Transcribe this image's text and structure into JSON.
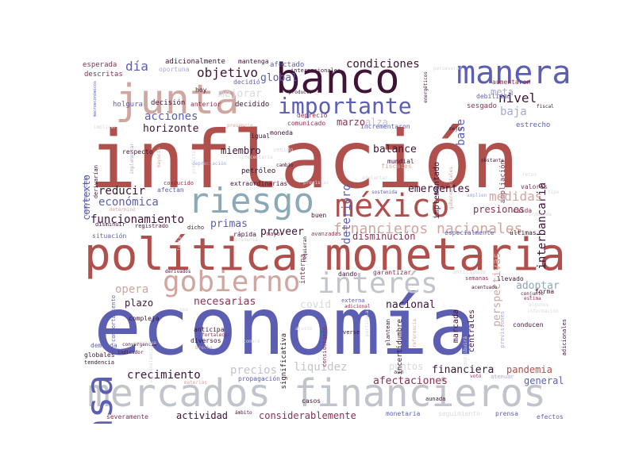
{
  "palette": {
    "red": "#b0504c",
    "indigo": "#5c5eb2",
    "steel": "#8aa9b9",
    "silver": "#c2c4cb",
    "rose": "#cfa6a0",
    "plum": "#3f1436",
    "wine": "#8e2f4f",
    "mauve": "#a07090",
    "light": "#d7d9de",
    "lav": "#a7a8d2"
  },
  "words": [
    {
      "t": "inflación",
      "c": "red"
    },
    {
      "t": "economía",
      "c": "indigo"
    },
    {
      "t": "política monetaria",
      "c": "red"
    },
    {
      "t": "mercados financieros",
      "c": "silver"
    },
    {
      "t": "banco",
      "c": "plum"
    },
    {
      "t": "junta",
      "c": "rose"
    },
    {
      "t": "manera",
      "c": "indigo"
    },
    {
      "t": "riesgo",
      "c": "steel"
    },
    {
      "t": "méxico",
      "c": "red"
    },
    {
      "t": "tasa",
      "c": "indigo"
    },
    {
      "t": "gobierno",
      "c": "rose"
    },
    {
      "t": "interés",
      "c": "silver"
    },
    {
      "t": "importante",
      "c": "indigo"
    },
    {
      "t": "condiciones",
      "c": "plum"
    },
    {
      "t": "financieros nacionales",
      "c": "rose"
    },
    {
      "t": "objetivo",
      "c": "plum"
    },
    {
      "t": "global",
      "c": "indigo"
    },
    {
      "t": "día",
      "c": "indigo"
    },
    {
      "t": "mejorar",
      "c": "light"
    },
    {
      "t": "acciones",
      "c": "indigo"
    },
    {
      "t": "contexto",
      "c": "indigo"
    },
    {
      "t": "horizonte",
      "c": "plum"
    },
    {
      "t": "marzo",
      "c": "wine"
    },
    {
      "t": "alza",
      "c": "silver"
    },
    {
      "t": "nivel",
      "c": "plum"
    },
    {
      "t": "base",
      "c": "indigo"
    },
    {
      "t": "meta",
      "c": "lav"
    },
    {
      "t": "baja",
      "c": "lav"
    },
    {
      "t": "interbancaria",
      "c": "plum"
    },
    {
      "t": "implementado",
      "c": "plum"
    },
    {
      "t": "ampliación",
      "c": "wine"
    },
    {
      "t": "deterioro",
      "c": "indigo"
    },
    {
      "t": "balance",
      "c": "plum"
    },
    {
      "t": "emergentes",
      "c": "plum"
    },
    {
      "t": "medidas",
      "c": "rose"
    },
    {
      "t": "presiones",
      "c": "wine"
    },
    {
      "t": "reducir",
      "c": "plum"
    },
    {
      "t": "económica",
      "c": "indigo"
    },
    {
      "t": "crecimiento",
      "c": "plum"
    },
    {
      "t": "funcionamiento",
      "c": "plum"
    },
    {
      "t": "primas",
      "c": "indigo"
    },
    {
      "t": "proveer",
      "c": "plum"
    },
    {
      "t": "disminución",
      "c": "wine"
    },
    {
      "t": "miembro",
      "c": "plum"
    },
    {
      "t": "petróleo",
      "c": "plum"
    },
    {
      "t": "opera",
      "c": "rose"
    },
    {
      "t": "plazo",
      "c": "plum"
    },
    {
      "t": "necesarias",
      "c": "wine"
    },
    {
      "t": "covid",
      "c": "light"
    },
    {
      "t": "nacional",
      "c": "plum"
    },
    {
      "t": "adoptar",
      "c": "steel"
    },
    {
      "t": "perspectivas",
      "c": "rose"
    },
    {
      "t": "precios",
      "c": "silver"
    },
    {
      "t": "liquidez",
      "c": "silver"
    },
    {
      "t": "puntos",
      "c": "light"
    },
    {
      "t": "financiera",
      "c": "plum"
    },
    {
      "t": "pandemia",
      "c": "red"
    },
    {
      "t": "afectaciones",
      "c": "wine"
    },
    {
      "t": "general",
      "c": "indigo"
    },
    {
      "t": "actividad",
      "c": "plum"
    },
    {
      "t": "considerablemente",
      "c": "wine"
    },
    {
      "t": "interna",
      "c": "wine"
    },
    {
      "t": "significativa",
      "c": "plum"
    },
    {
      "t": "marcada",
      "c": "plum"
    },
    {
      "t": "centrales",
      "c": "plum"
    },
    {
      "t": "incertidumbre",
      "c": "plum"
    },
    {
      "t": "esperada",
      "c": "wine"
    },
    {
      "t": "adicionalmente",
      "c": "plum"
    },
    {
      "t": "mantenga",
      "c": "plum"
    },
    {
      "t": "afectado",
      "c": "indigo"
    },
    {
      "t": "descritas",
      "c": "wine"
    },
    {
      "t": "oportuna",
      "c": "lav"
    },
    {
      "t": "decidió",
      "c": "indigo"
    },
    {
      "t": "holgura",
      "c": "indigo"
    },
    {
      "t": "decisión",
      "c": "plum"
    },
    {
      "t": "anterior",
      "c": "wine"
    },
    {
      "t": "decidido",
      "c": "plum"
    },
    {
      "t": "comunicado",
      "c": "wine"
    },
    {
      "t": "incrementaron",
      "c": "indigo"
    },
    {
      "t": "depreció",
      "c": "wine"
    },
    {
      "t": "sesgado",
      "c": "wine"
    },
    {
      "t": "aumentaron",
      "c": "wine"
    },
    {
      "t": "debilidad",
      "c": "indigo"
    },
    {
      "t": "estrecho",
      "c": "indigo"
    },
    {
      "t": "mejor",
      "c": "plum"
    },
    {
      "t": "respecto",
      "c": "plum"
    },
    {
      "t": "moneda",
      "c": "plum"
    },
    {
      "t": "igual",
      "c": "plum"
    },
    {
      "t": "mundial",
      "c": "plum"
    },
    {
      "t": "extraordinarias",
      "c": "plum"
    },
    {
      "t": "valores",
      "c": "wine"
    },
    {
      "t": "caída",
      "c": "wine"
    },
    {
      "t": "buen",
      "c": "plum"
    },
    {
      "t": "últimas",
      "c": "plum"
    },
    {
      "t": "especialmente",
      "c": "indigo"
    },
    {
      "t": "afectan",
      "c": "indigo"
    },
    {
      "t": "conducido",
      "c": "wine"
    },
    {
      "t": "disminuir",
      "c": "plum"
    },
    {
      "t": "registrado",
      "c": "plum"
    },
    {
      "t": "dicho",
      "c": "plum"
    },
    {
      "t": "situación",
      "c": "indigo"
    },
    {
      "t": "rápida",
      "c": "plum"
    },
    {
      "t": "mayor",
      "c": "wine"
    },
    {
      "t": "avanzadas",
      "c": "wine"
    },
    {
      "t": "requieran",
      "c": "plum"
    },
    {
      "t": "dando",
      "c": "plum"
    },
    {
      "t": "garantizar",
      "c": "wine"
    },
    {
      "t": "llevado",
      "c": "plum"
    },
    {
      "t": "semanas",
      "c": "wine"
    },
    {
      "t": "acentuado",
      "c": "plum"
    },
    {
      "t": "forma",
      "c": "plum"
    },
    {
      "t": "estima",
      "c": "wine"
    },
    {
      "t": "compleja",
      "c": "plum"
    },
    {
      "t": "diversos",
      "c": "plum"
    },
    {
      "t": "anticipa",
      "c": "plum"
    },
    {
      "t": "externa",
      "c": "indigo"
    },
    {
      "t": "adicional",
      "c": "wine"
    },
    {
      "t": "conducen",
      "c": "plum"
    },
    {
      "t": "demanda",
      "c": "indigo"
    },
    {
      "t": "convergencia",
      "c": "plum"
    },
    {
      "t": "globales",
      "c": "plum"
    },
    {
      "t": "tendencia",
      "c": "plum"
    },
    {
      "t": "propagación",
      "c": "indigo"
    },
    {
      "t": "casos",
      "c": "plum"
    },
    {
      "t": "aunada",
      "c": "plum"
    },
    {
      "t": "severamente",
      "c": "wine"
    },
    {
      "t": "monetaria",
      "c": "indigo"
    },
    {
      "t": "seguimiento",
      "c": "light"
    },
    {
      "t": "prensa",
      "c": "indigo"
    },
    {
      "t": "efectos",
      "c": "indigo"
    },
    {
      "t": "aún",
      "c": "wine"
    },
    {
      "t": "votó",
      "c": "wine"
    },
    {
      "t": "atenuar",
      "c": "lav"
    },
    {
      "t": "adicionales",
      "c": "plum"
    },
    {
      "t": "comportamiento",
      "c": "indigo"
    },
    {
      "t": "contrarrestado",
      "c": "indigo"
    },
    {
      "t": "derivarían",
      "c": "plum"
    },
    {
      "t": "previstas",
      "c": "light"
    },
    {
      "t": "adelantar",
      "c": "light"
    },
    {
      "t": "fiscales",
      "c": "rose"
    },
    {
      "t": "amplien",
      "c": "lav"
    },
    {
      "t": "determinó",
      "c": "rose"
    },
    {
      "t": "previsiones",
      "c": "lav"
    },
    {
      "t": "referencia",
      "c": "rose"
    },
    {
      "t": "plantean",
      "c": "plum"
    },
    {
      "t": "considerando",
      "c": "wine"
    },
    {
      "t": "tomará",
      "c": "light"
    },
    {
      "t": "brecha",
      "c": "rose"
    },
    {
      "t": "fortalecer",
      "c": "wine"
    },
    {
      "t": "negativa",
      "c": "light"
    },
    {
      "t": "indicador",
      "c": "plum"
    },
    {
      "t": "materias",
      "c": "rose"
    },
    {
      "t": "ámbito",
      "c": "plum"
    },
    {
      "t": "anticipada",
      "c": "light"
    },
    {
      "t": "derivados",
      "c": "plum"
    },
    {
      "t": "sostenida",
      "c": "indigo"
    },
    {
      "t": "presencia",
      "c": "rose"
    },
    {
      "t": "cambio",
      "c": "plum"
    },
    {
      "t": "venido",
      "c": "light"
    },
    {
      "t": "depreciación",
      "c": "lav"
    },
    {
      "t": "previsto",
      "c": "light"
    },
    {
      "t": "mayoría",
      "c": "rose"
    },
    {
      "t": "implementar",
      "c": "lav"
    },
    {
      "t": "implicar",
      "c": "light"
    },
    {
      "t": "hoy",
      "c": "plum"
    },
    {
      "t": "internacionales",
      "c": "plum"
    },
    {
      "t": "producto",
      "c": "plum"
    },
    {
      "t": "macroeconómicos",
      "c": "indigo"
    },
    {
      "t": "energéticos",
      "c": "plum"
    },
    {
      "t": "perseverar",
      "c": "light"
    },
    {
      "t": "gubernamentales",
      "c": "rose"
    },
    {
      "t": "obstante",
      "c": "plum"
    },
    {
      "t": "retos",
      "c": "light"
    },
    {
      "t": "tipo",
      "c": "light"
    },
    {
      "t": "fiscal",
      "c": "plum"
    },
    {
      "t": "ajuste",
      "c": "light"
    },
    {
      "t": "verse",
      "c": "plum"
    },
    {
      "t": "particular",
      "c": "light"
    },
    {
      "t": "algunos",
      "c": "light"
    },
    {
      "t": "conjunto",
      "c": "plum"
    },
    {
      "t": "información",
      "c": "light"
    },
    {
      "t": "contribuirá",
      "c": "light"
    },
    {
      "t": "ordenada",
      "c": "light"
    },
    {
      "t": "presenta",
      "c": "light"
    },
    {
      "t": "lenta",
      "c": "light"
    },
    {
      "t": "circunstancias",
      "c": "light"
    },
    {
      "t": "sea",
      "c": "light"
    },
    {
      "t": "precentaria",
      "c": "light"
    }
  ]
}
